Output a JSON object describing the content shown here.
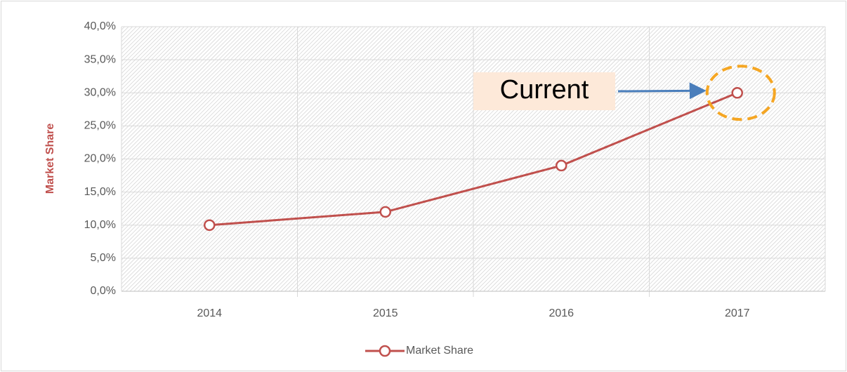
{
  "chart_data": {
    "type": "line",
    "annotation": "Current",
    "y_label": "Market Share",
    "categories": [
      "2014",
      "2015",
      "2016",
      "2017"
    ],
    "series": [
      {
        "name": "Market Share",
        "color": "#c0504d",
        "values": [
          10,
          12,
          19,
          30
        ]
      }
    ],
    "ylim": [
      0,
      40
    ],
    "yticks": [
      {
        "value": 0,
        "label": "0,0%"
      },
      {
        "value": 5,
        "label": "5,0%"
      },
      {
        "value": 10,
        "label": "10,0%"
      },
      {
        "value": 15,
        "label": "15,0%"
      },
      {
        "value": 20,
        "label": "20,0%"
      },
      {
        "value": 25,
        "label": "25,0%"
      },
      {
        "value": 30,
        "label": "30,0%"
      },
      {
        "value": 35,
        "label": "35,0%"
      },
      {
        "value": 40,
        "label": "40,0%"
      }
    ],
    "grid": true,
    "legend": "bottom"
  }
}
